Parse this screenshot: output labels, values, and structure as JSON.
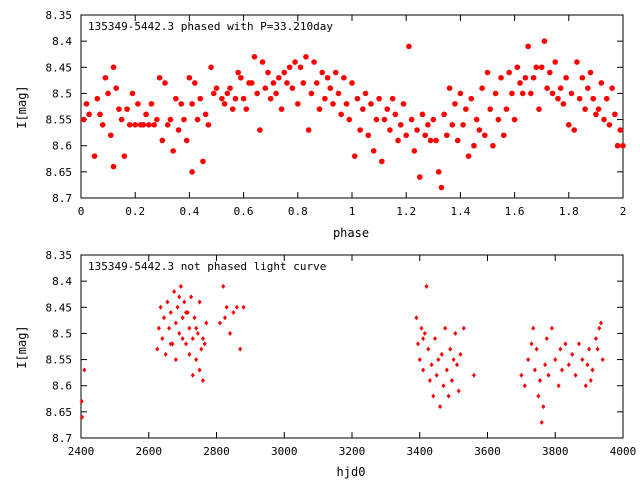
{
  "chart_data": [
    {
      "type": "scatter",
      "title": "135349-5442.3 phased with P=33.210day",
      "xlabel": "phase",
      "ylabel": "I[mag]",
      "xlim": [
        0,
        2
      ],
      "ylim": [
        8.7,
        8.35
      ],
      "y_inverted": true,
      "xticks": [
        "0",
        "0.2",
        "0.4",
        "0.6",
        "0.8",
        "1",
        "1.2",
        "1.4",
        "1.6",
        "1.8",
        "2"
      ],
      "yticks": [
        "8.35",
        "8.4",
        "8.45",
        "8.5",
        "8.55",
        "8.6",
        "8.65",
        "8.7"
      ],
      "marker": "filled-circle",
      "color": "#ff0000",
      "points": [
        [
          0.01,
          8.55
        ],
        [
          0.02,
          8.52
        ],
        [
          0.03,
          8.54
        ],
        [
          0.05,
          8.62
        ],
        [
          0.06,
          8.51
        ],
        [
          0.07,
          8.54
        ],
        [
          0.08,
          8.56
        ],
        [
          0.09,
          8.47
        ],
        [
          0.1,
          8.5
        ],
        [
          0.11,
          8.58
        ],
        [
          0.12,
          8.45
        ],
        [
          0.12,
          8.64
        ],
        [
          0.13,
          8.49
        ],
        [
          0.14,
          8.53
        ],
        [
          0.15,
          8.55
        ],
        [
          0.16,
          8.62
        ],
        [
          0.17,
          8.53
        ],
        [
          0.18,
          8.56
        ],
        [
          0.19,
          8.5
        ],
        [
          0.2,
          8.56
        ],
        [
          0.21,
          8.52
        ],
        [
          0.22,
          8.56
        ],
        [
          0.23,
          8.56
        ],
        [
          0.24,
          8.54
        ],
        [
          0.25,
          8.56
        ],
        [
          0.26,
          8.52
        ],
        [
          0.27,
          8.56
        ],
        [
          0.28,
          8.55
        ],
        [
          0.29,
          8.47
        ],
        [
          0.3,
          8.59
        ],
        [
          0.31,
          8.48
        ],
        [
          0.32,
          8.56
        ],
        [
          0.33,
          8.55
        ],
        [
          0.34,
          8.61
        ],
        [
          0.35,
          8.51
        ],
        [
          0.36,
          8.57
        ],
        [
          0.37,
          8.52
        ],
        [
          0.38,
          8.55
        ],
        [
          0.39,
          8.59
        ],
        [
          0.4,
          8.47
        ],
        [
          0.41,
          8.52
        ],
        [
          0.41,
          8.65
        ],
        [
          0.42,
          8.48
        ],
        [
          0.43,
          8.55
        ],
        [
          0.44,
          8.51
        ],
        [
          0.45,
          8.63
        ],
        [
          0.46,
          8.54
        ],
        [
          0.47,
          8.56
        ],
        [
          0.48,
          8.45
        ],
        [
          0.49,
          8.5
        ],
        [
          0.5,
          8.49
        ],
        [
          0.52,
          8.51
        ],
        [
          0.53,
          8.52
        ],
        [
          0.54,
          8.5
        ],
        [
          0.55,
          8.49
        ],
        [
          0.56,
          8.53
        ],
        [
          0.57,
          8.51
        ],
        [
          0.58,
          8.46
        ],
        [
          0.59,
          8.47
        ],
        [
          0.6,
          8.51
        ],
        [
          0.61,
          8.53
        ],
        [
          0.62,
          8.48
        ],
        [
          0.63,
          8.48
        ],
        [
          0.64,
          8.43
        ],
        [
          0.65,
          8.5
        ],
        [
          0.66,
          8.57
        ],
        [
          0.67,
          8.44
        ],
        [
          0.68,
          8.49
        ],
        [
          0.69,
          8.46
        ],
        [
          0.7,
          8.51
        ],
        [
          0.71,
          8.48
        ],
        [
          0.72,
          8.5
        ],
        [
          0.73,
          8.47
        ],
        [
          0.74,
          8.53
        ],
        [
          0.75,
          8.46
        ],
        [
          0.76,
          8.48
        ],
        [
          0.77,
          8.45
        ],
        [
          0.78,
          8.49
        ],
        [
          0.79,
          8.44
        ],
        [
          0.8,
          8.52
        ],
        [
          0.81,
          8.45
        ],
        [
          0.82,
          8.48
        ],
        [
          0.83,
          8.43
        ],
        [
          0.84,
          8.57
        ],
        [
          0.85,
          8.5
        ],
        [
          0.86,
          8.44
        ],
        [
          0.87,
          8.48
        ],
        [
          0.88,
          8.53
        ],
        [
          0.89,
          8.46
        ],
        [
          0.9,
          8.51
        ],
        [
          0.91,
          8.47
        ],
        [
          0.92,
          8.49
        ],
        [
          0.93,
          8.52
        ],
        [
          0.94,
          8.46
        ],
        [
          0.95,
          8.5
        ],
        [
          0.96,
          8.54
        ],
        [
          0.97,
          8.47
        ],
        [
          0.98,
          8.52
        ],
        [
          0.99,
          8.55
        ],
        [
          1.0,
          8.48
        ],
        [
          1.01,
          8.62
        ],
        [
          1.02,
          8.51
        ],
        [
          1.03,
          8.57
        ],
        [
          1.04,
          8.53
        ],
        [
          1.05,
          8.5
        ],
        [
          1.06,
          8.58
        ],
        [
          1.07,
          8.52
        ],
        [
          1.08,
          8.61
        ],
        [
          1.09,
          8.55
        ],
        [
          1.1,
          8.51
        ],
        [
          1.11,
          8.63
        ],
        [
          1.12,
          8.55
        ],
        [
          1.13,
          8.53
        ],
        [
          1.14,
          8.57
        ],
        [
          1.15,
          8.51
        ],
        [
          1.16,
          8.54
        ],
        [
          1.17,
          8.59
        ],
        [
          1.18,
          8.56
        ],
        [
          1.19,
          8.52
        ],
        [
          1.2,
          8.58
        ],
        [
          1.21,
          8.41
        ],
        [
          1.22,
          8.55
        ],
        [
          1.23,
          8.61
        ],
        [
          1.24,
          8.57
        ],
        [
          1.25,
          8.66
        ],
        [
          1.26,
          8.54
        ],
        [
          1.27,
          8.58
        ],
        [
          1.28,
          8.56
        ],
        [
          1.29,
          8.59
        ],
        [
          1.3,
          8.55
        ],
        [
          1.31,
          8.59
        ],
        [
          1.32,
          8.65
        ],
        [
          1.33,
          8.68
        ],
        [
          1.34,
          8.54
        ],
        [
          1.35,
          8.58
        ],
        [
          1.36,
          8.49
        ],
        [
          1.37,
          8.56
        ],
        [
          1.38,
          8.52
        ],
        [
          1.39,
          8.59
        ],
        [
          1.4,
          8.5
        ],
        [
          1.41,
          8.56
        ],
        [
          1.42,
          8.53
        ],
        [
          1.43,
          8.62
        ],
        [
          1.44,
          8.51
        ],
        [
          1.45,
          8.6
        ],
        [
          1.46,
          8.55
        ],
        [
          1.47,
          8.57
        ],
        [
          1.48,
          8.49
        ],
        [
          1.49,
          8.58
        ],
        [
          1.5,
          8.46
        ],
        [
          1.51,
          8.53
        ],
        [
          1.52,
          8.6
        ],
        [
          1.53,
          8.5
        ],
        [
          1.54,
          8.55
        ],
        [
          1.55,
          8.47
        ],
        [
          1.56,
          8.58
        ],
        [
          1.57,
          8.53
        ],
        [
          1.58,
          8.46
        ],
        [
          1.59,
          8.5
        ],
        [
          1.6,
          8.55
        ],
        [
          1.61,
          8.45
        ],
        [
          1.62,
          8.48
        ],
        [
          1.63,
          8.5
        ],
        [
          1.64,
          8.47
        ],
        [
          1.65,
          8.41
        ],
        [
          1.66,
          8.5
        ],
        [
          1.67,
          8.47
        ],
        [
          1.68,
          8.45
        ],
        [
          1.69,
          8.53
        ],
        [
          1.7,
          8.45
        ],
        [
          1.71,
          8.4
        ],
        [
          1.72,
          8.49
        ],
        [
          1.73,
          8.46
        ],
        [
          1.74,
          8.5
        ],
        [
          1.75,
          8.44
        ],
        [
          1.76,
          8.51
        ],
        [
          1.77,
          8.49
        ],
        [
          1.78,
          8.52
        ],
        [
          1.79,
          8.47
        ],
        [
          1.8,
          8.56
        ],
        [
          1.81,
          8.5
        ],
        [
          1.82,
          8.57
        ],
        [
          1.83,
          8.44
        ],
        [
          1.84,
          8.51
        ],
        [
          1.85,
          8.47
        ],
        [
          1.86,
          8.53
        ],
        [
          1.87,
          8.49
        ],
        [
          1.88,
          8.46
        ],
        [
          1.89,
          8.51
        ],
        [
          1.9,
          8.54
        ],
        [
          1.91,
          8.53
        ],
        [
          1.92,
          8.48
        ],
        [
          1.93,
          8.55
        ],
        [
          1.94,
          8.51
        ],
        [
          1.95,
          8.56
        ],
        [
          1.96,
          8.49
        ],
        [
          1.97,
          8.54
        ],
        [
          1.98,
          8.6
        ],
        [
          1.99,
          8.57
        ],
        [
          2.0,
          8.6
        ]
      ]
    },
    {
      "type": "scatter",
      "title": "135349-5442.3 not phased light curve",
      "xlabel": "hjd0",
      "ylabel": "I[mag]",
      "xlim": [
        2400,
        4000
      ],
      "ylim": [
        8.7,
        8.35
      ],
      "y_inverted": true,
      "xticks": [
        "2400",
        "2600",
        "2800",
        "3000",
        "3200",
        "3400",
        "3600",
        "3800",
        "4000"
      ],
      "yticks": [
        "8.35",
        "8.4",
        "8.45",
        "8.5",
        "8.55",
        "8.6",
        "8.65",
        "8.7"
      ],
      "marker": "filled-diamond",
      "color": "#ff0000",
      "points": [
        [
          2402,
          8.63
        ],
        [
          2403,
          8.66
        ],
        [
          2410,
          8.57
        ],
        [
          2625,
          8.53
        ],
        [
          2630,
          8.49
        ],
        [
          2635,
          8.45
        ],
        [
          2640,
          8.51
        ],
        [
          2645,
          8.47
        ],
        [
          2650,
          8.54
        ],
        [
          2655,
          8.44
        ],
        [
          2660,
          8.49
        ],
        [
          2665,
          8.46
        ],
        [
          2670,
          8.52
        ],
        [
          2675,
          8.42
        ],
        [
          2680,
          8.48
        ],
        [
          2685,
          8.45
        ],
        [
          2690,
          8.5
        ],
        [
          2695,
          8.41
        ],
        [
          2700,
          8.47
        ],
        [
          2705,
          8.44
        ],
        [
          2710,
          8.52
        ],
        [
          2715,
          8.46
        ],
        [
          2720,
          8.49
        ],
        [
          2725,
          8.43
        ],
        [
          2730,
          8.51
        ],
        [
          2735,
          8.47
        ],
        [
          2740,
          8.55
        ],
        [
          2745,
          8.5
        ],
        [
          2750,
          8.57
        ],
        [
          2755,
          8.53
        ],
        [
          2760,
          8.59
        ],
        [
          2765,
          8.52
        ],
        [
          2770,
          8.48
        ],
        [
          2680,
          8.55
        ],
        [
          2690,
          8.43
        ],
        [
          2700,
          8.51
        ],
        [
          2710,
          8.46
        ],
        [
          2720,
          8.54
        ],
        [
          2730,
          8.58
        ],
        [
          2740,
          8.49
        ],
        [
          2750,
          8.44
        ],
        [
          2760,
          8.51
        ],
        [
          2665,
          8.52
        ],
        [
          2820,
          8.41
        ],
        [
          2825,
          8.47
        ],
        [
          2830,
          8.45
        ],
        [
          2840,
          8.5
        ],
        [
          2850,
          8.46
        ],
        [
          2860,
          8.45
        ],
        [
          2870,
          8.53
        ],
        [
          2880,
          8.45
        ],
        [
          2810,
          8.48
        ],
        [
          3390,
          8.47
        ],
        [
          3395,
          8.52
        ],
        [
          3400,
          8.55
        ],
        [
          3405,
          8.49
        ],
        [
          3410,
          8.57
        ],
        [
          3415,
          8.5
        ],
        [
          3420,
          8.41
        ],
        [
          3425,
          8.53
        ],
        [
          3430,
          8.59
        ],
        [
          3435,
          8.56
        ],
        [
          3440,
          8.62
        ],
        [
          3445,
          8.51
        ],
        [
          3450,
          8.58
        ],
        [
          3455,
          8.55
        ],
        [
          3460,
          8.64
        ],
        [
          3465,
          8.54
        ],
        [
          3470,
          8.6
        ],
        [
          3475,
          8.49
        ],
        [
          3480,
          8.57
        ],
        [
          3485,
          8.62
        ],
        [
          3490,
          8.53
        ],
        [
          3495,
          8.59
        ],
        [
          3500,
          8.55
        ],
        [
          3505,
          8.5
        ],
        [
          3510,
          8.56
        ],
        [
          3515,
          8.61
        ],
        [
          3520,
          8.54
        ],
        [
          3530,
          8.49
        ],
        [
          3560,
          8.58
        ],
        [
          3410,
          8.51
        ],
        [
          3700,
          8.58
        ],
        [
          3710,
          8.6
        ],
        [
          3720,
          8.55
        ],
        [
          3730,
          8.52
        ],
        [
          3735,
          8.49
        ],
        [
          3740,
          8.57
        ],
        [
          3745,
          8.53
        ],
        [
          3750,
          8.62
        ],
        [
          3755,
          8.59
        ],
        [
          3760,
          8.67
        ],
        [
          3765,
          8.64
        ],
        [
          3770,
          8.56
        ],
        [
          3775,
          8.51
        ],
        [
          3780,
          8.58
        ],
        [
          3790,
          8.49
        ],
        [
          3800,
          8.55
        ],
        [
          3810,
          8.6
        ],
        [
          3815,
          8.53
        ],
        [
          3820,
          8.57
        ],
        [
          3830,
          8.52
        ],
        [
          3840,
          8.56
        ],
        [
          3850,
          8.54
        ],
        [
          3860,
          8.58
        ],
        [
          3870,
          8.52
        ],
        [
          3880,
          8.55
        ],
        [
          3890,
          8.6
        ],
        [
          3900,
          8.53
        ],
        [
          3910,
          8.57
        ],
        [
          3920,
          8.51
        ],
        [
          3930,
          8.49
        ],
        [
          3940,
          8.55
        ],
        [
          3935,
          8.48
        ],
        [
          3925,
          8.53
        ],
        [
          3905,
          8.59
        ],
        [
          3895,
          8.56
        ]
      ]
    }
  ]
}
